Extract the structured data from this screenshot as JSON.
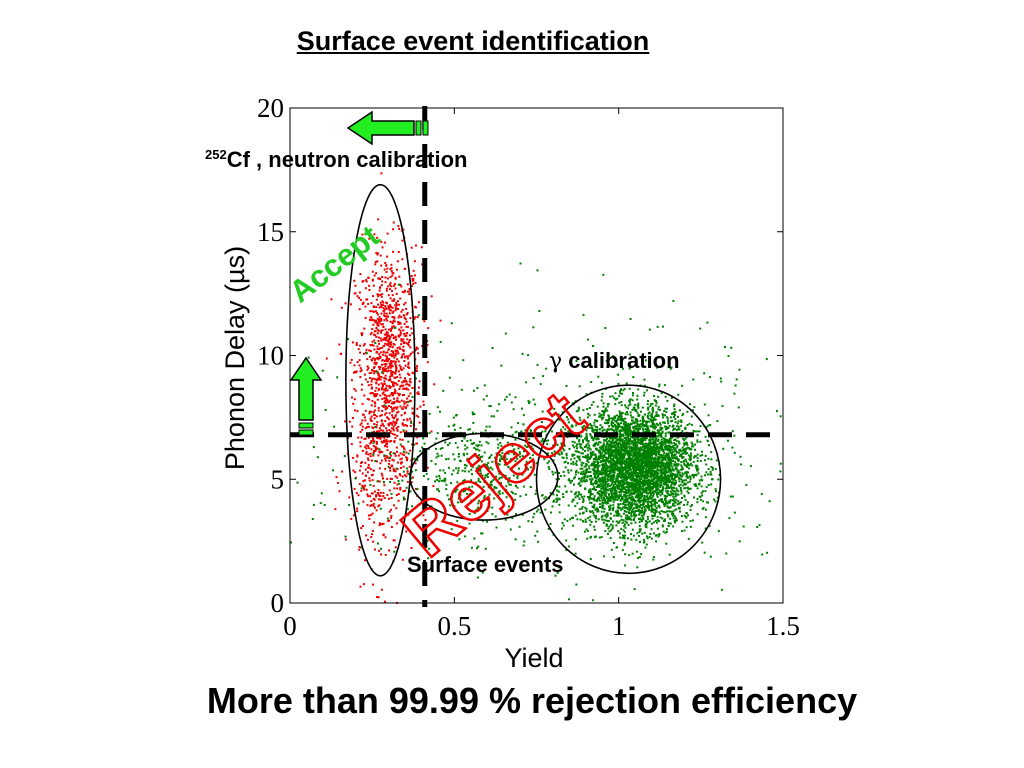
{
  "slide": {
    "title": "Surface event identification",
    "footer": "More than 99.99 % rejection efficiency"
  },
  "chart_data": {
    "type": "scatter",
    "xlabel": "Yield",
    "ylabel": "Phonon Delay (µs)",
    "xlim": [
      0,
      1.5
    ],
    "ylim": [
      0,
      20
    ],
    "xticks": [
      "0",
      "0.5",
      "1",
      "1.5"
    ],
    "yticks": [
      "0",
      "5",
      "10",
      "15",
      "20"
    ],
    "grid": false,
    "colors": {
      "neutron": "#ee0000",
      "gamma": "#008000",
      "accept": "#22cc22",
      "reject": "#ee0000",
      "arrow": "#22ee22"
    },
    "series": [
      {
        "color": "#ee0000",
        "clusters": [
          {
            "cx": 0.3,
            "cy": 9.5,
            "sx": 0.05,
            "sy": 2.4,
            "n": 1100
          },
          {
            "cx": 0.27,
            "cy": 5.0,
            "sx": 0.05,
            "sy": 2.0,
            "n": 250
          }
        ]
      },
      {
        "color": "#008000",
        "clusters": [
          {
            "cx": 1.05,
            "cy": 5.5,
            "sx": 0.09,
            "sy": 1.2,
            "n": 4200
          },
          {
            "cx": 0.62,
            "cy": 5.5,
            "sx": 0.15,
            "sy": 1.2,
            "n": 500
          },
          {
            "cx": 0.8,
            "cy": 6.0,
            "sx": 0.4,
            "sy": 3.0,
            "n": 350
          }
        ]
      }
    ],
    "cuts": {
      "yield_cut": 0.41,
      "delay_cut": 6.8
    },
    "regions": [
      {
        "cx": 0.275,
        "cy": 9.0,
        "rx": 0.105,
        "ry": 7.9
      },
      {
        "cx": 0.59,
        "cy": 5.1,
        "rx": 0.225,
        "ry": 1.75
      },
      {
        "cx": 1.03,
        "cy": 5.0,
        "rx": 0.28,
        "ry": 3.8
      }
    ],
    "annotations": {
      "neutron_label_sup": "252",
      "neutron_label": "Cf , neutron calibration",
      "gamma_symbol": "γ",
      "gamma_label": " calibration",
      "surface_label": "Surface events",
      "accept": "Accept",
      "reject": "Reject"
    }
  }
}
